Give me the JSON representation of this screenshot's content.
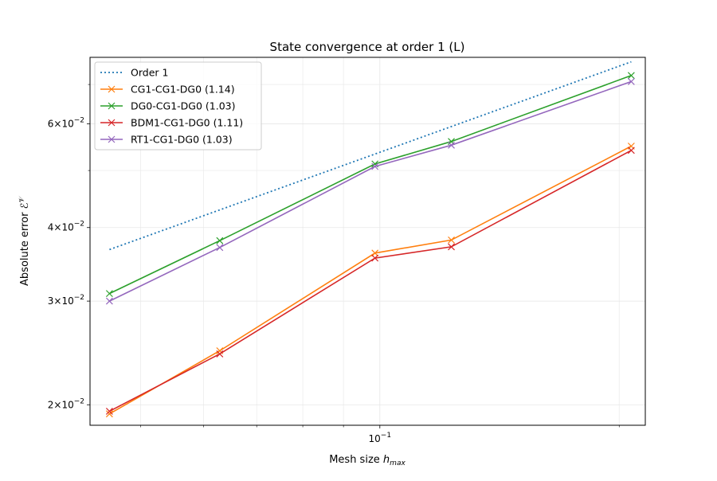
{
  "chart_data": {
    "type": "line",
    "title": "State convergence at order 1 (L)",
    "xlabel": "Mesh size",
    "xlabel_symbol": "h",
    "xlabel_sub": "max",
    "ylabel": "Absolute error",
    "ylabel_symbol": "ℰ",
    "ylabel_sup": "𝒱",
    "x_scale": "log",
    "y_scale": "log",
    "xlim": [
      0.0432,
      0.2157
    ],
    "ylim": [
      0.01846,
      0.07784
    ],
    "grid": true,
    "legend_position": "upper-left",
    "x_ticks": [
      {
        "value": 0.1,
        "base": "10",
        "exp": "−1"
      }
    ],
    "x_minor_ticks": [
      0.05,
      0.06,
      0.07,
      0.08,
      0.09,
      0.2
    ],
    "y_ticks": [
      {
        "value": 0.02,
        "mant": "2",
        "exp": "−2"
      },
      {
        "value": 0.03,
        "mant": "3",
        "exp": "−2"
      },
      {
        "value": 0.04,
        "mant": "4",
        "exp": "−2"
      },
      {
        "value": 0.06,
        "mant": "6",
        "exp": "−2"
      }
    ],
    "y_minor_ticks": [
      0.05,
      0.07
    ],
    "series": [
      {
        "name": "Order 1",
        "style": "dotted",
        "marker": "none",
        "color": "#1f77b4",
        "x": [
          0.0457,
          0.2071
        ],
        "y": [
          0.0367,
          0.0765
        ]
      },
      {
        "name": "CG1-CG1-DG0 (1.14)",
        "style": "solid",
        "marker": "x",
        "color": "#ff7f0e",
        "x": [
          0.0457,
          0.0629,
          0.0986,
          0.123,
          0.2071
        ],
        "y": [
          0.0193,
          0.0247,
          0.0362,
          0.0381,
          0.055
        ]
      },
      {
        "name": "DG0-CG1-DG0 (1.03)",
        "style": "solid",
        "marker": "x",
        "color": "#2ca02c",
        "x": [
          0.0457,
          0.0629,
          0.0986,
          0.123,
          0.2071
        ],
        "y": [
          0.0309,
          0.038,
          0.0513,
          0.056,
          0.0725
        ]
      },
      {
        "name": "BDM1-CG1-DG0 (1.11)",
        "style": "solid",
        "marker": "x",
        "color": "#d62728",
        "x": [
          0.0457,
          0.0629,
          0.0986,
          0.123,
          0.2071
        ],
        "y": [
          0.0195,
          0.0244,
          0.0355,
          0.0371,
          0.0541
        ]
      },
      {
        "name": "RT1-CG1-DG0 (1.03)",
        "style": "solid",
        "marker": "x",
        "color": "#9467bd",
        "x": [
          0.0457,
          0.0629,
          0.0986,
          0.123,
          0.2071
        ],
        "y": [
          0.03,
          0.037,
          0.0508,
          0.0552,
          0.0708
        ]
      }
    ]
  }
}
